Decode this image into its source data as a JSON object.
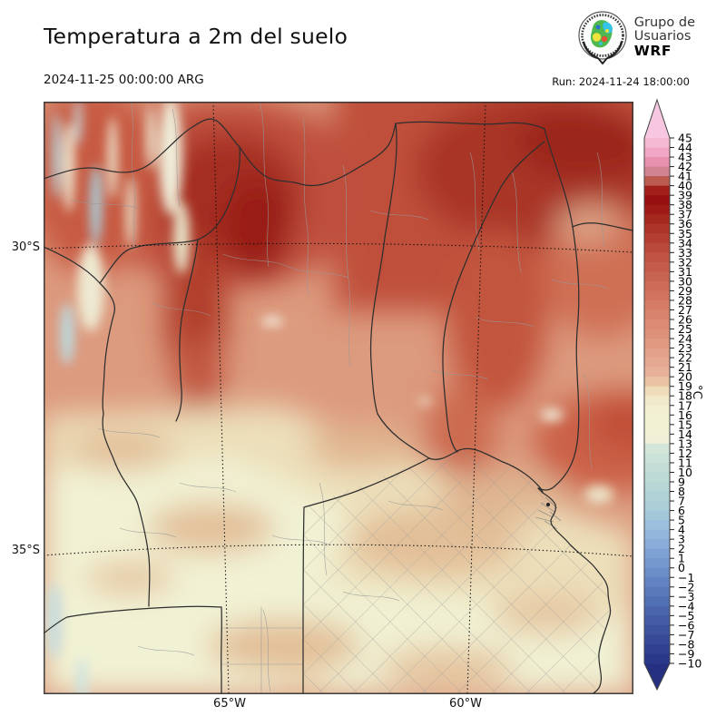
{
  "header": {
    "title": "Temperatura a 2m del suelo",
    "valid_time": "2024-11-25 00:00:00 ARG",
    "run_label": "Run: 2024-11-24 18:00:00"
  },
  "logo": {
    "line1": "Grupo de",
    "line2": "Usuarios",
    "line3": "WRF"
  },
  "map": {
    "lat_ticks": [
      {
        "label": "30°S"
      },
      {
        "label": "35°S"
      }
    ],
    "lon_ticks": [
      {
        "label": "65°W"
      },
      {
        "label": "60°W"
      }
    ]
  },
  "colorbar": {
    "unit": "°C",
    "max": 45,
    "min": -10,
    "ticks": [
      45,
      44,
      43,
      42,
      41,
      40,
      39,
      38,
      37,
      36,
      35,
      34,
      33,
      32,
      31,
      30,
      29,
      28,
      27,
      26,
      25,
      24,
      23,
      22,
      21,
      20,
      19,
      18,
      17,
      16,
      15,
      14,
      13,
      12,
      11,
      10,
      9,
      8,
      7,
      6,
      5,
      4,
      3,
      2,
      1,
      0,
      -1,
      -2,
      -3,
      -4,
      -5,
      -6,
      -7,
      -8,
      -9,
      -10
    ],
    "band_colors": [
      "#f4b8d2",
      "#f0a6c4",
      "#e891ae",
      "#d08390",
      "#bb5a4e",
      "#a31f1b",
      "#970f11",
      "#9d1a17",
      "#a5281f",
      "#ac3428",
      "#b33e31",
      "#ba493a",
      "#c05343",
      "#c55b4a",
      "#c96351",
      "#cd6b58",
      "#d1735f",
      "#d57b66",
      "#d8836d",
      "#db8a73",
      "#de917a",
      "#e19981",
      "#e3a189",
      "#e5a991",
      "#e7b199",
      "#eac4a2",
      "#efdcba",
      "#f1e9ca",
      "#f2efd2",
      "#f1f1d4",
      "#f0f1d5",
      "#eff0d6",
      "#d2e6da",
      "#cbe2d8",
      "#c4ded7",
      "#bedad6",
      "#b7d6d5",
      "#b1d2d5",
      "#abced7",
      "#a4c7da",
      "#9cbfdd",
      "#93b6dd",
      "#89acda",
      "#7fa2d5",
      "#7598cf",
      "#6b8dc8",
      "#6283c1",
      "#5979ba",
      "#516fb3",
      "#4a65ac",
      "#435ca5",
      "#3d539e",
      "#374a97",
      "#314190",
      "#2b3889"
    ],
    "over_color": "#f7c6e0",
    "under_color": "#253080"
  }
}
